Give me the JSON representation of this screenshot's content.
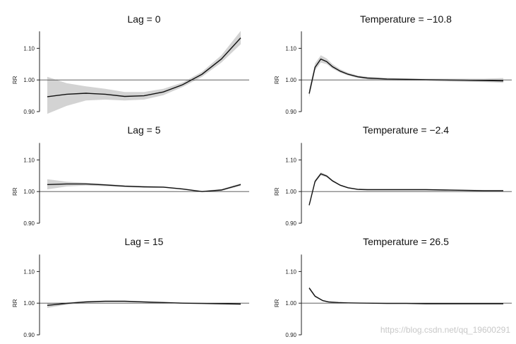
{
  "colors": {
    "band": "#d3d3d3",
    "line": "#111111",
    "axis": "#222222"
  },
  "watermark": "https://blog.csdn.net/qq_19600291",
  "chart_data": [
    {
      "type": "line",
      "title": "Lag = 0",
      "ylabel": "RR",
      "ylim": [
        0.9,
        1.15
      ],
      "yticks": [
        "0.90",
        "1.00",
        "1.10"
      ],
      "reference_y": 1.0,
      "xlim": [
        0,
        1
      ],
      "series": [
        {
          "name": "estimate",
          "x": [
            0,
            0.1,
            0.2,
            0.3,
            0.4,
            0.5,
            0.6,
            0.7,
            0.8,
            0.9,
            1.0
          ],
          "values": [
            0.947,
            0.955,
            0.958,
            0.955,
            0.948,
            0.95,
            0.962,
            0.985,
            1.018,
            1.066,
            1.133
          ],
          "lower": [
            0.893,
            0.918,
            0.935,
            0.938,
            0.935,
            0.938,
            0.952,
            0.978,
            1.01,
            1.055,
            1.113
          ],
          "upper": [
            1.01,
            0.99,
            0.98,
            0.972,
            0.962,
            0.962,
            0.972,
            0.992,
            1.026,
            1.078,
            1.155
          ]
        }
      ]
    },
    {
      "type": "line",
      "title": "Temperature = −10.8",
      "ylabel": "RR",
      "ylim": [
        0.9,
        1.15
      ],
      "yticks": [
        "0.90",
        "1.00",
        "1.10"
      ],
      "reference_y": 1.0,
      "xlim": [
        0,
        1
      ],
      "series": [
        {
          "name": "estimate",
          "x": [
            0,
            0.03,
            0.06,
            0.09,
            0.12,
            0.16,
            0.2,
            0.25,
            0.3,
            0.4,
            0.5,
            0.6,
            0.7,
            0.8,
            0.9,
            1.0
          ],
          "values": [
            0.957,
            1.04,
            1.066,
            1.058,
            1.042,
            1.028,
            1.018,
            1.01,
            1.006,
            1.003,
            1.002,
            1.001,
            1.0,
            0.999,
            0.998,
            0.997
          ],
          "lower": [
            0.945,
            1.03,
            1.055,
            1.05,
            1.036,
            1.023,
            1.014,
            1.006,
            1.002,
            0.999,
            0.998,
            0.997,
            0.995,
            0.994,
            0.993,
            0.991
          ],
          "upper": [
            0.97,
            1.052,
            1.078,
            1.068,
            1.05,
            1.034,
            1.023,
            1.014,
            1.01,
            1.007,
            1.005,
            1.004,
            1.004,
            1.004,
            1.004,
            1.006
          ]
        }
      ]
    },
    {
      "type": "line",
      "title": "Lag = 5",
      "ylabel": "RR",
      "ylim": [
        0.9,
        1.15
      ],
      "yticks": [
        "0.90",
        "1.00",
        "1.10"
      ],
      "reference_y": 1.0,
      "xlim": [
        0,
        1
      ],
      "series": [
        {
          "name": "estimate",
          "x": [
            0,
            0.1,
            0.2,
            0.3,
            0.4,
            0.5,
            0.6,
            0.7,
            0.8,
            0.9,
            1.0
          ],
          "values": [
            1.022,
            1.024,
            1.024,
            1.021,
            1.017,
            1.015,
            1.014,
            1.008,
            1.0,
            1.005,
            1.022
          ],
          "lower": [
            1.007,
            1.016,
            1.019,
            1.017,
            1.014,
            1.012,
            1.012,
            1.006,
            0.998,
            1.002,
            1.018
          ],
          "upper": [
            1.039,
            1.031,
            1.028,
            1.024,
            1.02,
            1.017,
            1.016,
            1.01,
            1.002,
            1.008,
            1.026
          ]
        }
      ]
    },
    {
      "type": "line",
      "title": "Temperature = −2.4",
      "ylabel": "RR",
      "ylim": [
        0.9,
        1.15
      ],
      "yticks": [
        "0.90",
        "1.00",
        "1.10"
      ],
      "reference_y": 1.0,
      "xlim": [
        0,
        1
      ],
      "series": [
        {
          "name": "estimate",
          "x": [
            0,
            0.03,
            0.06,
            0.09,
            0.12,
            0.16,
            0.2,
            0.25,
            0.3,
            0.4,
            0.5,
            0.6,
            0.7,
            0.8,
            0.9,
            1.0
          ],
          "values": [
            0.957,
            1.032,
            1.056,
            1.049,
            1.034,
            1.02,
            1.012,
            1.007,
            1.006,
            1.006,
            1.006,
            1.006,
            1.005,
            1.004,
            1.003,
            1.003
          ],
          "lower": [
            0.952,
            1.027,
            1.051,
            1.045,
            1.031,
            1.018,
            1.01,
            1.005,
            1.004,
            1.004,
            1.004,
            1.004,
            1.003,
            1.002,
            1.001,
            1.001
          ],
          "upper": [
            0.962,
            1.037,
            1.061,
            1.053,
            1.037,
            1.022,
            1.014,
            1.009,
            1.008,
            1.008,
            1.008,
            1.008,
            1.007,
            1.006,
            1.005,
            1.005
          ]
        }
      ]
    },
    {
      "type": "line",
      "title": "Lag = 15",
      "ylabel": "RR",
      "ylim": [
        0.9,
        1.15
      ],
      "yticks": [
        "0.90",
        "1.00",
        "1.10"
      ],
      "reference_y": 1.0,
      "xlim": [
        0,
        1
      ],
      "series": [
        {
          "name": "estimate",
          "x": [
            0,
            0.1,
            0.2,
            0.3,
            0.4,
            0.5,
            0.6,
            0.7,
            0.8,
            0.9,
            1.0
          ],
          "values": [
            0.993,
            0.999,
            1.004,
            1.006,
            1.006,
            1.004,
            1.002,
            1.0,
            0.999,
            0.998,
            0.997
          ],
          "lower": [
            0.985,
            0.995,
            1.001,
            1.004,
            1.004,
            1.002,
            1.0,
            0.998,
            0.997,
            0.996,
            0.995
          ],
          "upper": [
            1.001,
            1.003,
            1.007,
            1.008,
            1.008,
            1.006,
            1.004,
            1.002,
            1.001,
            1.0,
            0.999
          ]
        }
      ]
    },
    {
      "type": "line",
      "title": "Temperature = 26.5",
      "ylabel": "RR",
      "ylim": [
        0.9,
        1.15
      ],
      "yticks": [
        "0.90",
        "1.00",
        "1.10"
      ],
      "reference_y": 1.0,
      "xlim": [
        0,
        1
      ],
      "series": [
        {
          "name": "estimate",
          "x": [
            0,
            0.03,
            0.07,
            0.1,
            0.15,
            0.2,
            0.3,
            0.4,
            0.5,
            0.6,
            0.7,
            0.8,
            0.9,
            1.0
          ],
          "values": [
            1.048,
            1.022,
            1.008,
            1.004,
            1.002,
            1.001,
            1.0,
            0.999,
            0.999,
            0.998,
            0.998,
            0.998,
            0.998,
            0.998
          ],
          "lower": [
            1.044,
            1.019,
            1.006,
            1.002,
            1.001,
            1.0,
            0.999,
            0.998,
            0.998,
            0.997,
            0.997,
            0.997,
            0.997,
            0.997
          ],
          "upper": [
            1.052,
            1.025,
            1.01,
            1.006,
            1.003,
            1.002,
            1.001,
            1.0,
            1.0,
            0.999,
            0.999,
            0.999,
            0.999,
            0.999
          ]
        }
      ]
    }
  ]
}
